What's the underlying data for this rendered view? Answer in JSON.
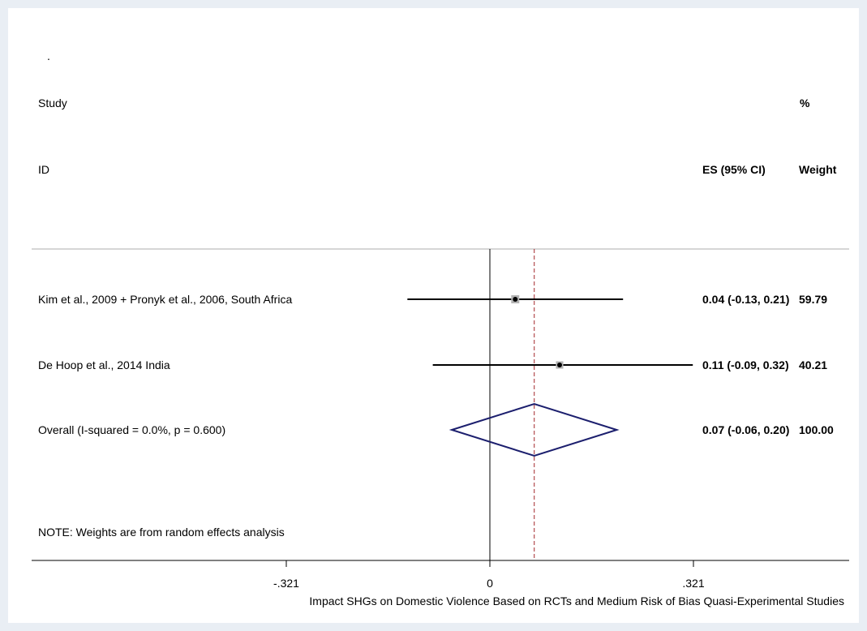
{
  "chart_data": {
    "type": "forest",
    "header": {
      "dot": ".",
      "study_label": "Study",
      "id_label": "ID",
      "pct_label": "%",
      "es_label": "ES (95% CI)",
      "weight_label": "Weight"
    },
    "studies": [
      {
        "label": "Kim et al., 2009 + Pronyk et al., 2006, South Africa",
        "es": 0.04,
        "lo": -0.13,
        "hi": 0.21,
        "es_text": "0.04 (-0.13, 0.21)",
        "weight": "59.79",
        "weight_value": 59.79
      },
      {
        "label": "De Hoop et al., 2014 India",
        "es": 0.11,
        "lo": -0.09,
        "hi": 0.32,
        "es_text": "0.11 (-0.09, 0.32)",
        "weight": "40.21",
        "weight_value": 40.21
      }
    ],
    "overall": {
      "label": "Overall  (I-squared = 0.0%, p = 0.600)",
      "es": 0.07,
      "lo": -0.06,
      "hi": 0.2,
      "es_text": "0.07 (-0.06, 0.20)",
      "weight": "100.00"
    },
    "note": "NOTE: Weights are from random effects analysis",
    "x_ticks": [
      {
        "value": -0.321,
        "label": "-.321"
      },
      {
        "value": 0,
        "label": "0"
      },
      {
        "value": 0.321,
        "label": ".321"
      }
    ],
    "xlabel": "Impact SHGs on Domestic Violence Based on RCTs and Medium Risk of Bias Quasi-Experimental Studies",
    "colors": {
      "line": "#000000",
      "diamond": "#1c1f6e",
      "overall_line": "#a3262a",
      "box": "#b3b3b3",
      "divider": "#bdbdbd"
    }
  }
}
